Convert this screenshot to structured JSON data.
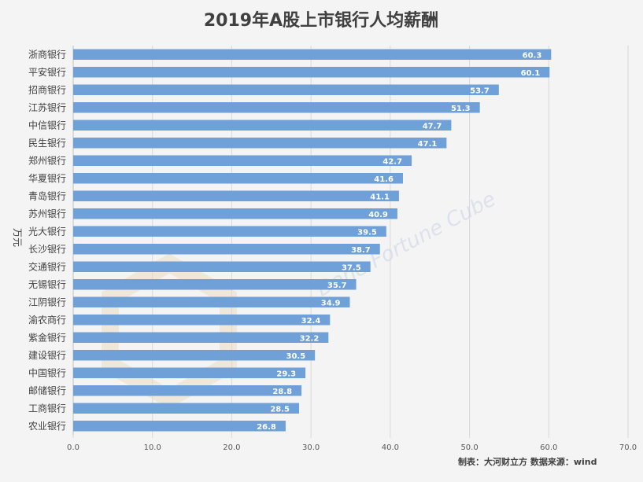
{
  "chart_data": {
    "type": "bar",
    "orientation": "horizontal",
    "title": "2019年A股上市银行人均薪酬",
    "ylabel": "万元",
    "xlabel": "",
    "xlim": [
      0,
      70
    ],
    "xticks": [
      "0.0",
      "10.0",
      "20.0",
      "30.0",
      "40.0",
      "50.0",
      "60.0",
      "70.0"
    ],
    "xtick_values": [
      0,
      10,
      20,
      30,
      40,
      50,
      60,
      70
    ],
    "grid": true,
    "bar_color": "#6fa0d8",
    "categories": [
      "浙商银行",
      "平安银行",
      "招商银行",
      "江苏银行",
      "中信银行",
      "民生银行",
      "郑州银行",
      "华夏银行",
      "青岛银行",
      "苏州银行",
      "光大银行",
      "长沙银行",
      "交通银行",
      "无锡银行",
      "江阴银行",
      "渝农商行",
      "紫金银行",
      "建设银行",
      "中国银行",
      "邮储银行",
      "工商银行",
      "农业银行"
    ],
    "values": [
      60.3,
      60.1,
      53.7,
      51.3,
      47.7,
      47.1,
      42.7,
      41.6,
      41.1,
      40.9,
      39.5,
      38.7,
      37.5,
      35.7,
      34.9,
      32.4,
      32.2,
      30.5,
      29.3,
      28.8,
      28.5,
      26.8
    ],
    "value_labels": [
      "60.3",
      "60.1",
      "53.7",
      "51.3",
      "47.7",
      "47.1",
      "42.7",
      "41.6",
      "41.1",
      "40.9",
      "39.5",
      "38.7",
      "37.5",
      "35.7",
      "34.9",
      "32.4",
      "32.2",
      "30.5",
      "29.3",
      "28.8",
      "28.5",
      "26.8"
    ]
  },
  "footer": {
    "source": "制表：大河财立方    数据来源：wind"
  },
  "watermark": {
    "text": "Dahe Fortune Cube"
  }
}
